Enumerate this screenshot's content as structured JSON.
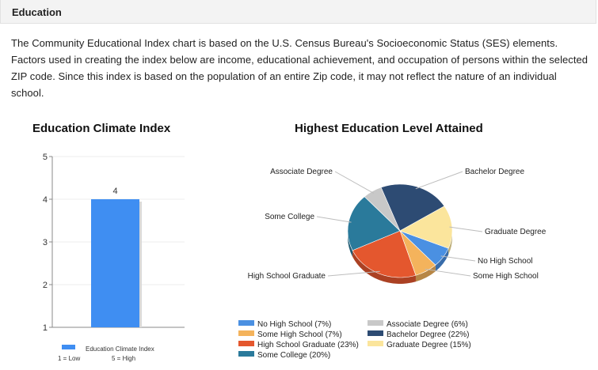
{
  "header": {
    "title": "Education"
  },
  "intro": {
    "text": "The Community Educational Index chart is based on the U.S. Census Bureau's Socioeconomic Status (SES) elements. Factors used in creating the index below are income, educational achievement, and occupation of persons within the selected ZIP code. Since this index is based on the population of an entire Zip code, it may not reflect the nature of an individual school."
  },
  "chart_data": [
    {
      "type": "bar",
      "title": "Education Climate Index",
      "categories": [
        "Education Climate Index"
      ],
      "values": [
        4
      ],
      "data_labels": [
        "4"
      ],
      "ylim": [
        1,
        5
      ],
      "yticks": [
        "1",
        "2",
        "3",
        "4",
        "5"
      ],
      "xlabel": "",
      "ylabel": "",
      "grid": true,
      "legend": {
        "position": "bottom",
        "entry": "Education Climate Index",
        "low_note": "1 = Low",
        "high_note": "5 = High"
      },
      "colors": {
        "bar": "#3f8ef2"
      }
    },
    {
      "type": "pie",
      "title": "Highest Education Level Attained",
      "legend_position": "bottom",
      "series": [
        {
          "name": "No High School",
          "value": 7,
          "label": "No High School",
          "legend": "No High School (7%)",
          "color": "#4a90e2"
        },
        {
          "name": "Some High School",
          "value": 7,
          "label": "Some High School",
          "legend": "Some High School (7%)",
          "color": "#f4b35c"
        },
        {
          "name": "High School Graduate",
          "value": 23,
          "label": "High School Graduate",
          "legend": "High School Graduate (23%)",
          "color": "#e4572e"
        },
        {
          "name": "Some College",
          "value": 20,
          "label": "Some College",
          "legend": "Some College (20%)",
          "color": "#2a7a9b"
        },
        {
          "name": "Associate Degree",
          "value": 6,
          "label": "Associate Degree",
          "legend": "Associate Degree (6%)",
          "color": "#c8c8c8"
        },
        {
          "name": "Bachelor Degree",
          "value": 22,
          "label": "Bachelor Degree",
          "legend": "Bachelor Degree (22%)",
          "color": "#2d4b73"
        },
        {
          "name": "Graduate Degree",
          "value": 15,
          "label": "Graduate Degree",
          "legend": "Graduate Degree (15%)",
          "color": "#fbe59c"
        }
      ]
    }
  ]
}
